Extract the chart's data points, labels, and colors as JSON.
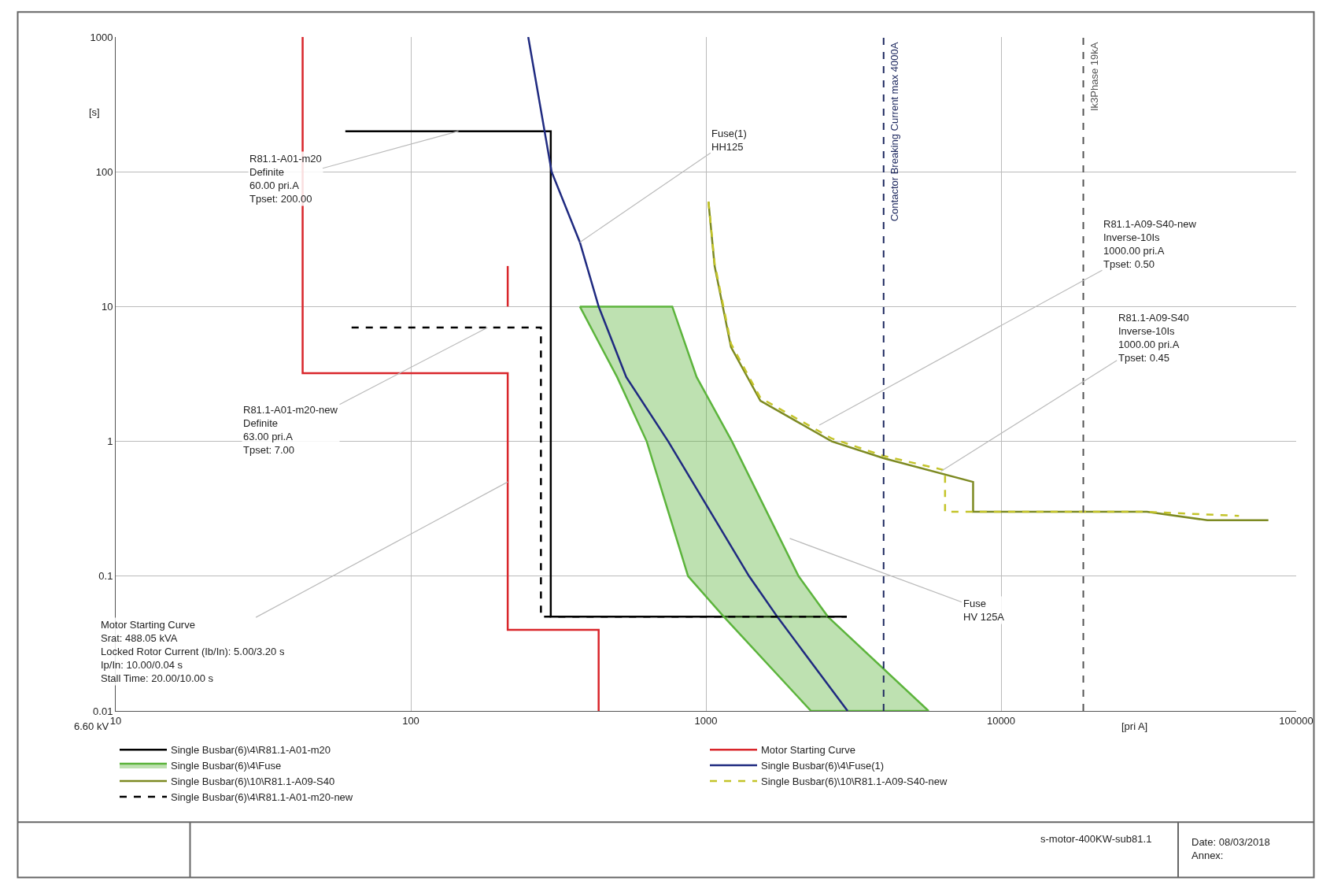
{
  "chart_data": {
    "type": "line",
    "xlabel": "[pri A]",
    "ylabel": "[s]",
    "log": "xy",
    "grid": true,
    "legend": "bottom",
    "xlim": [
      10,
      100000
    ],
    "xticks": [
      10,
      100,
      1000,
      10000,
      100000
    ],
    "ylim": [
      0.01,
      1000
    ],
    "yticks": [
      0.01,
      0.1,
      1,
      10,
      100,
      1000
    ],
    "series": [
      {
        "name": "Single Busbar(6)\\4\\R81.1-A01-m20",
        "color": "#000000",
        "line_style": "solid",
        "x": [
          60,
          298,
          298,
          3000
        ],
        "values": [
          200,
          200,
          0.05,
          0.05
        ]
      },
      {
        "name": "Motor Starting Curve",
        "color": "#d9262b",
        "line_style": "solid",
        "x": [
          43,
          43,
          213,
          213,
          433,
          433,
          null,
          213,
          213
        ],
        "values": [
          1000,
          3.2,
          3.2,
          0.04,
          0.04,
          0.01,
          null,
          20,
          10
        ]
      },
      {
        "name": "Single Busbar(6)\\4\\Fuse",
        "type": "area",
        "color": "#5cb43c",
        "line_style": "solid",
        "x": [
          374,
          500,
          630,
          870,
          1150,
          2270,
          5680,
          2590,
          2060,
          1225,
          930,
          769,
          374
        ],
        "values": [
          10,
          3,
          1,
          0.1,
          0.05,
          0.01,
          0.01,
          0.05,
          0.1,
          1,
          3,
          10,
          10
        ]
      },
      {
        "name": "Single Busbar(6)\\4\\Fuse(1)",
        "color": "#1f2a80",
        "line_style": "solid",
        "x": [
          250,
          300,
          374,
          433,
          537,
          745,
          1400,
          1745,
          3020
        ],
        "values": [
          1000,
          100,
          30,
          10,
          3,
          1,
          0.1,
          0.05,
          0.01
        ]
      },
      {
        "name": "Single Busbar(6)\\10\\R81.1-A09-S40",
        "color": "#7d8a22",
        "line_style": "solid",
        "x": [
          1020,
          1070,
          1216,
          1530,
          2670,
          4000,
          8040,
          8040,
          31200,
          50000,
          80500
        ],
        "values": [
          60,
          20,
          5,
          2,
          1,
          0.75,
          0.5,
          0.3,
          0.3,
          0.26,
          0.26
        ]
      },
      {
        "name": "Single Busbar(6)\\10\\R81.1-A09-S40-new",
        "color": "#c4c42a",
        "line_style": "dashed",
        "x": [
          1020,
          1070,
          1216,
          1530,
          2670,
          4000,
          6460,
          6460,
          31200,
          64000
        ],
        "values": [
          60,
          21,
          5.3,
          2.1,
          1.05,
          0.78,
          0.61,
          0.3,
          0.3,
          0.28
        ]
      },
      {
        "name": "Single Busbar(6)\\4\\R81.1-A01-m20-new",
        "color": "#000000",
        "line_style": "dashed",
        "x": [
          63,
          276,
          276,
          3000
        ],
        "values": [
          7,
          7,
          0.05,
          0.05
        ]
      }
    ],
    "ref_lines": [
      {
        "axis": "x",
        "value": 4000,
        "label": "Contactor Breaking Current max 4000A",
        "color": "#1f2a60",
        "line_style": "dashed"
      },
      {
        "axis": "x",
        "value": 19000,
        "label": "Ik3Phase 19kA",
        "color": "#555555",
        "line_style": "dashed"
      }
    ],
    "annotations": [
      {
        "text": "R81.1-A01-m20\nDefinite\n60.00 pri.A\nTpset: 200.00",
        "x": 145,
        "y": 200
      },
      {
        "text": "R81.1-A01-m20-new\nDefinite\n63.00 pri.A\nTpset: 7.00",
        "x": 182,
        "y": 7
      },
      {
        "text": "Fuse(1)\nHH125",
        "x": 374,
        "y": 30
      },
      "Fuse\nHV 125A",
      "R81.1-A09-S40-new\nInverse-10Is\n1000.00 pri.A\nTpset: 0.50",
      {
        "text": "R81.1-A09-S40\nInverse-10Is\n1000.00 pri.A\nTpset: 0.45",
        "x": 6260,
        "y": 0.6
      },
      {
        "text": "Motor Starting Curve\nSrat: 488.05 kVA\nLocked Rotor Current (Ib/In): 5.00/3.20 s\nIp/In: 10.00/0.04 s\nStall Time: 20.00/10.00 s",
        "x": 213,
        "y": 0.5
      },
      "6.60 kV",
      "s-motor-400KW-sub81.1",
      "Date: 08/03/2018\nAnnex:"
    ]
  }
}
